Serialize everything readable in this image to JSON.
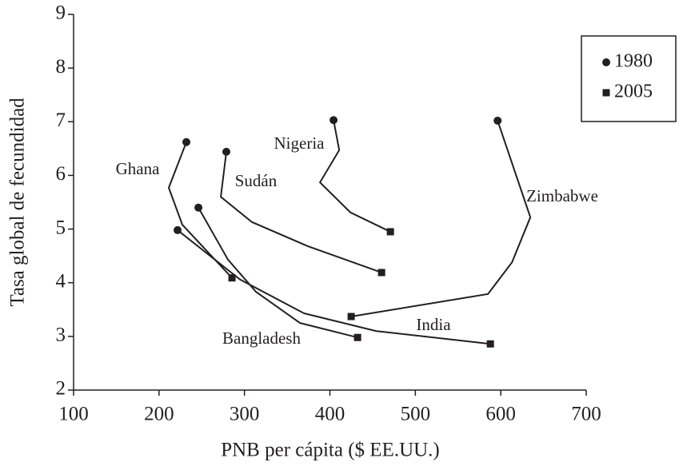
{
  "chart_data": {
    "type": "line",
    "xlabel": "PNB per cápita ($ EE.UU.)",
    "ylabel": "Tasa global de fecundidad",
    "xlim": [
      100,
      700
    ],
    "xticks": [
      100,
      200,
      300,
      400,
      500,
      600,
      700
    ],
    "ylim": [
      2,
      9
    ],
    "yticks": [
      2,
      3,
      4,
      5,
      6,
      7,
      8,
      9
    ],
    "grid": false,
    "legend_position": "upper right",
    "legend": [
      {
        "label": "1980",
        "marker": "circle"
      },
      {
        "label": "2005",
        "marker": "square"
      }
    ],
    "series": [
      {
        "name": "Ghana",
        "color": "#231f20",
        "x": [
          232,
          211.4,
          227.3,
          285.4
        ],
        "values": [
          6.62,
          5.77,
          5.08,
          4.09
        ]
      },
      {
        "name": "Bangladesh",
        "color": "#231f20",
        "x": [
          246.1,
          280.7,
          313.5,
          365,
          432.4
        ],
        "values": [
          5.4,
          4.43,
          3.83,
          3.25,
          2.98
        ]
      },
      {
        "name": "India",
        "color": "#231f20",
        "x": [
          221.7,
          294.8,
          369.7,
          453.9,
          587.8
        ],
        "values": [
          4.98,
          4.06,
          3.43,
          3.1,
          2.86
        ]
      },
      {
        "name": "Sudán",
        "color": "#231f20",
        "x": [
          278.8,
          272.3,
          308.8,
          374.3,
          460.5
        ],
        "values": [
          6.44,
          5.6,
          5.13,
          4.68,
          4.19
        ]
      },
      {
        "name": "Nigeria",
        "color": "#231f20",
        "x": [
          404.3,
          410.9,
          388.4,
          424,
          470.8
        ],
        "values": [
          7.03,
          6.47,
          5.87,
          5.31,
          4.95
        ]
      },
      {
        "name": "Zimbabwe",
        "color": "#231f20",
        "x": [
          596.3,
          634.6,
          613.1,
          585,
          424.9
        ],
        "values": [
          7.02,
          5.22,
          4.38,
          3.79,
          3.37
        ]
      }
    ]
  }
}
